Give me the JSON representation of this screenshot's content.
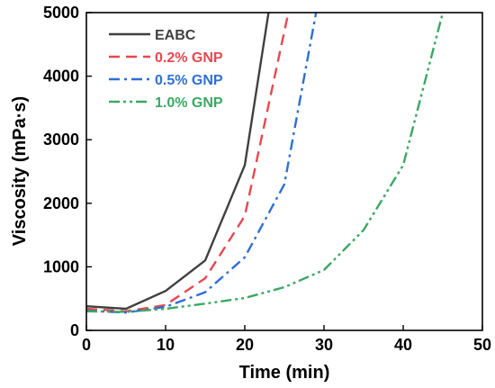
{
  "chart_data": {
    "type": "line",
    "title": "",
    "xlabel": "Time (min)",
    "ylabel": "Viscosity (mPa·s)",
    "xlim": [
      0,
      50
    ],
    "ylim": [
      0,
      5000
    ],
    "xticks": [
      0,
      10,
      20,
      30,
      40,
      50
    ],
    "yticks": [
      0,
      1000,
      2000,
      3000,
      4000,
      5000
    ],
    "grid": false,
    "legend_position": "top-left",
    "series": [
      {
        "name": "EABC",
        "color": "#404040",
        "dash": "solid",
        "x": [
          0,
          5,
          10,
          15,
          20,
          23
        ],
        "y": [
          380,
          340,
          620,
          1100,
          2600,
          5000
        ]
      },
      {
        "name": "0.2% GNP",
        "color": "#e8474f",
        "dash": "dash",
        "x": [
          0,
          5,
          10,
          15,
          20,
          25.5
        ],
        "y": [
          340,
          300,
          400,
          820,
          1800,
          5000
        ]
      },
      {
        "name": "0.5% GNP",
        "color": "#2d6fd4",
        "dash": "dashdot",
        "x": [
          0,
          5,
          10,
          15,
          20,
          25,
          29
        ],
        "y": [
          310,
          280,
          370,
          600,
          1150,
          2300,
          5000
        ]
      },
      {
        "name": "1.0% GNP",
        "color": "#3aa862",
        "dash": "dashdotdot",
        "x": [
          0,
          5,
          10,
          15,
          20,
          25,
          30,
          35,
          40,
          45
        ],
        "y": [
          300,
          290,
          340,
          420,
          510,
          680,
          950,
          1580,
          2600,
          5000
        ]
      }
    ]
  }
}
